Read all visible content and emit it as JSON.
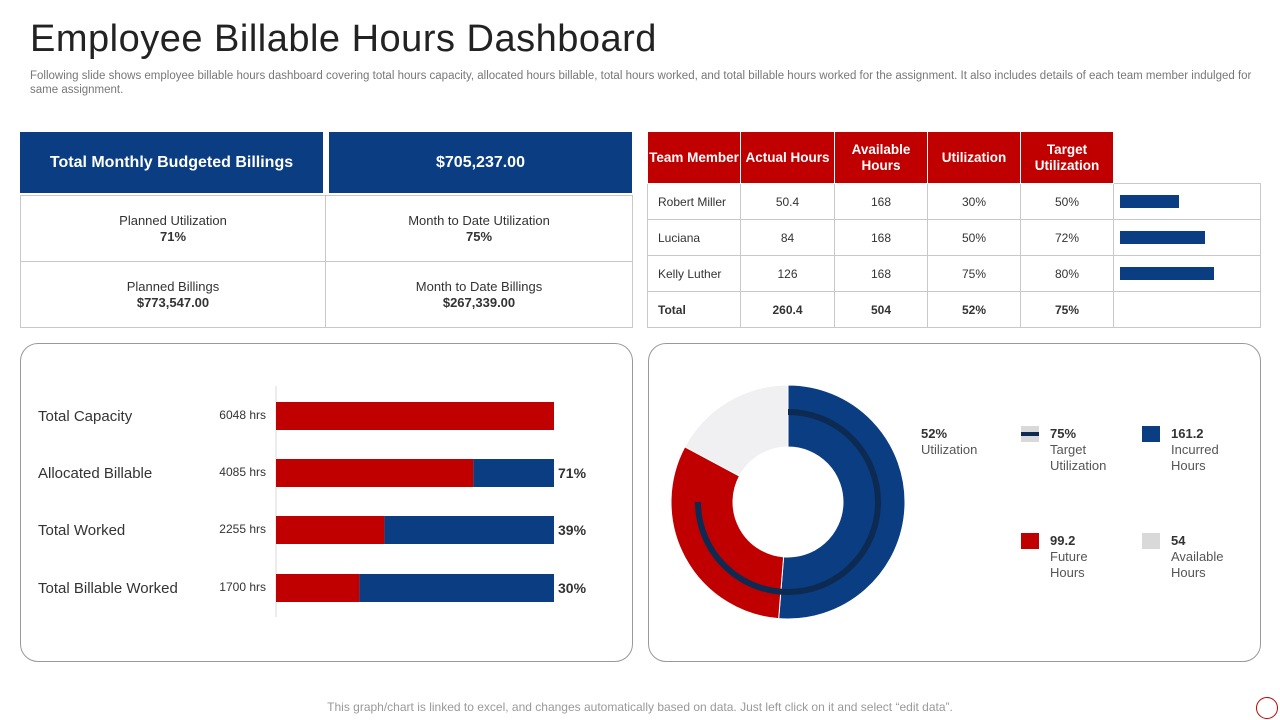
{
  "header": {
    "title": "Employee Billable Hours Dashboard",
    "subtitle": "Following slide shows employee billable hours dashboard covering total hours capacity, allocated hours billable, total hours worked, and total billable hours worked for the assignment. It also includes details of each team member indulged for same assignment."
  },
  "kpis": {
    "budget_label": "Total Monthly Budgeted Billings",
    "budget_value": "$705,237.00",
    "planned_util_label": "Planned Utilization",
    "planned_util_value": "71%",
    "mtd_util_label": "Month to Date Utilization",
    "mtd_util_value": "75%",
    "planned_bill_label": "Planned Billings",
    "planned_bill_value": "$773,547.00",
    "mtd_bill_label": "Month to Date Billings",
    "mtd_bill_value": "$267,339.00"
  },
  "team_table": {
    "headers": [
      "Team Member",
      "Actual Hours",
      "Available Hours",
      "Utilization",
      "Target Utilization"
    ],
    "rows": [
      {
        "name": "Robert Miller",
        "actual": "50.4",
        "available": "168",
        "utilization": "30%",
        "target": "50%",
        "target_frac": 0.5
      },
      {
        "name": "Luciana",
        "actual": "84",
        "available": "168",
        "utilization": "50%",
        "target": "72%",
        "target_frac": 0.72
      },
      {
        "name": "Kelly Luther",
        "actual": "126",
        "available": "168",
        "utilization": "75%",
        "target": "80%",
        "target_frac": 0.8
      }
    ],
    "total": {
      "name": "Total",
      "actual": "260.4",
      "available": "504",
      "utilization": "52%",
      "target": "75%"
    }
  },
  "chart_data": [
    {
      "type": "bar",
      "orientation": "horizontal",
      "categories": [
        "Total Capacity",
        "Allocated Billable",
        "Total Worked",
        "Total Billable Worked"
      ],
      "hour_labels": [
        "6048 hrs",
        "4085 hrs",
        "2255 hrs",
        "1700 hrs"
      ],
      "series": [
        {
          "name": "Red portion",
          "color": "#c00000",
          "values": [
            100,
            71,
            39,
            30
          ]
        },
        {
          "name": "Blue portion",
          "color": "#0b3d82",
          "values": [
            0,
            29,
            61,
            70
          ]
        }
      ],
      "percent_labels": [
        "",
        "71%",
        "39%",
        "30%"
      ],
      "xlim": [
        0,
        100
      ]
    },
    {
      "type": "pie",
      "variant": "donut",
      "slices": [
        {
          "name": "Incurred Hours",
          "value": 161.2,
          "color": "#0b3d82"
        },
        {
          "name": "Future Hours",
          "value": 99.2,
          "color": "#c00000"
        },
        {
          "name": "Available Hours",
          "value": 54,
          "color": "#f0f0f2"
        }
      ],
      "target_arc_fraction": 0.75,
      "target_arc_color": "#0d2a52",
      "utilization_label": {
        "value": "52%",
        "text": "Utilization"
      },
      "legend": [
        {
          "value": "75%",
          "line1": "Target",
          "line2": "Utilization",
          "icon": "target-line-icon"
        },
        {
          "value": "161.2",
          "line1": "Incurred",
          "line2": "Hours",
          "color": "#0b3d82"
        },
        {
          "value": "99.2",
          "line1": "Future",
          "line2": "Hours",
          "color": "#c00000"
        },
        {
          "value": "54",
          "line1": "Available",
          "line2": "Hours",
          "color": "#d9d9d9"
        }
      ]
    }
  ],
  "footer": {
    "note": "This graph/chart is linked to excel,  and changes automatically based on data. Just left click on it and select “edit data”."
  }
}
